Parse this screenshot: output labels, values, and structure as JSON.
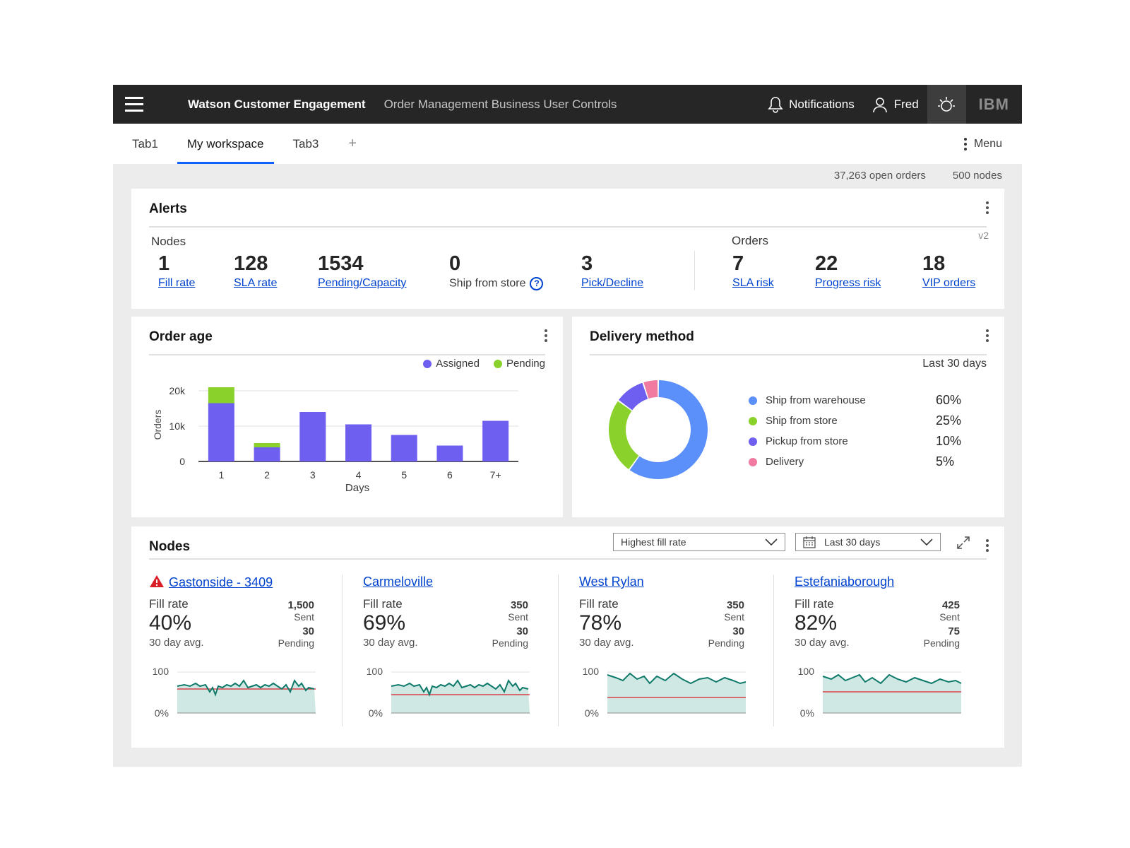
{
  "header": {
    "brand": "Watson Customer Engagement",
    "subtitle": "Order Management Business User Controls",
    "notifications_label": "Notifications",
    "user_label": "Fred",
    "logo_text": "IBM",
    "icons": [
      "menu-icon",
      "bell-icon",
      "user-icon",
      "lightbulb-icon"
    ]
  },
  "tabs": [
    {
      "label": "Tab1",
      "active": false
    },
    {
      "label": "My workspace",
      "active": true
    },
    {
      "label": "Tab3",
      "active": false
    }
  ],
  "tab_add_label": "+",
  "menu_label": "Menu",
  "stats": {
    "open_orders": "37,263 open orders",
    "nodes": "500 nodes"
  },
  "alerts": {
    "title": "Alerts",
    "version": "v2",
    "nodes_heading": "Nodes",
    "orders_heading": "Orders",
    "node_metrics": [
      {
        "value": "1",
        "label": "Fill rate"
      },
      {
        "value": "128",
        "label": "SLA rate"
      },
      {
        "value": "1534",
        "label": "Pending/Capacity"
      },
      {
        "value": "0",
        "label": "Ship from store"
      },
      {
        "value": "3",
        "label": "Pick/Decline"
      }
    ],
    "order_metrics": [
      {
        "value": "7",
        "label": "SLA risk"
      },
      {
        "value": "22",
        "label": "Progress risk"
      },
      {
        "value": "18",
        "label": "VIP orders"
      }
    ]
  },
  "order_age": {
    "title": "Order age",
    "legend": [
      "Assigned",
      "Pending"
    ],
    "ylabel": "Orders",
    "xlabel": "Days",
    "yticks": [
      "0",
      "10k",
      "20k"
    ]
  },
  "delivery_method": {
    "title": "Delivery method",
    "period": "Last 30 days",
    "items": [
      {
        "label": "Ship from warehouse",
        "pct": "60%"
      },
      {
        "label": "Ship from store",
        "pct": "25%"
      },
      {
        "label": "Pickup from store",
        "pct": "10%"
      },
      {
        "label": "Delivery",
        "pct": "5%"
      }
    ]
  },
  "nodes": {
    "title": "Nodes",
    "sort_select": "Highest fill rate",
    "period_select": "Last 30 days",
    "spark_ymax": "100",
    "spark_ymin": "0%",
    "fill_label": "Fill rate",
    "avg_label": "30 day avg.",
    "sent_label": "Sent",
    "pending_label": "Pending",
    "items": [
      {
        "name": "Gastonside - 3409",
        "alert": true,
        "fill": "40%",
        "sent": "1,500",
        "pending": "30"
      },
      {
        "name": "Carmeloville",
        "alert": false,
        "fill": "69%",
        "sent": "350",
        "pending": "30"
      },
      {
        "name": "West Rylan",
        "alert": false,
        "fill": "78%",
        "sent": "350",
        "pending": "30"
      },
      {
        "name": "Estefaniaborough",
        "alert": false,
        "fill": "82%",
        "sent": "425",
        "pending": "75"
      }
    ]
  },
  "colors": {
    "assigned": "#6f5ff0",
    "pending": "#8ad12c",
    "warehouse": "#5b8ff9",
    "store": "#8ad12c",
    "pickup": "#6f5ff0",
    "delivery": "#f07aa0",
    "spark_line": "#0f7a6a",
    "spark_fill": "#cfe8e3",
    "spark_target": "#da1e28",
    "alert": "#da1e28"
  },
  "chart_data": [
    {
      "type": "bar",
      "title": "Order age",
      "xlabel": "Days",
      "ylabel": "Orders",
      "categories": [
        "1",
        "2",
        "3",
        "4",
        "5",
        "6",
        "7+"
      ],
      "series": [
        {
          "name": "Assigned",
          "values": [
            16500,
            4000,
            14000,
            10500,
            7500,
            4500,
            11500
          ]
        },
        {
          "name": "Pending",
          "values": [
            4500,
            1200,
            0,
            0,
            0,
            0,
            0
          ]
        }
      ],
      "ylim": [
        0,
        22000
      ],
      "stacked": true,
      "legend": "top-right",
      "grid": true
    },
    {
      "type": "pie",
      "title": "Delivery method",
      "donut": true,
      "categories": [
        "Ship from warehouse",
        "Ship from store",
        "Pickup from store",
        "Delivery"
      ],
      "values": [
        60,
        25,
        10,
        5
      ]
    }
  ]
}
